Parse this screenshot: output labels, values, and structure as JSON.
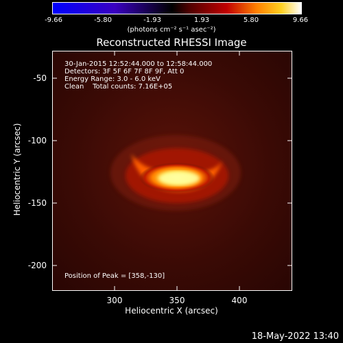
{
  "colorbar": {
    "ticks": [
      "-9.66",
      "-5.80",
      "-1.93",
      "1.93",
      "5.80",
      "9.66"
    ],
    "units": "(photons cm⁻² s⁻¹ asec⁻²)"
  },
  "title": "Reconstructed RHESSI Image",
  "info": {
    "time_range": "30-Jan-2015 12:52:44.000 to 12:58:44.000",
    "detectors": "Detectors: 3F 5F 6F 7F 8F 9F, Att 0",
    "energy": "Energy Range: 3.0 - 6.0 keV",
    "clean": "Clean    Total counts: 7.16E+05",
    "peak": "Position of Peak = [358,-130]"
  },
  "axes": {
    "xlabel": "Heliocentric X (arcsec)",
    "ylabel": "Heliocentric Y (arcsec)",
    "xticks": [
      "300",
      "350",
      "400"
    ],
    "yticks": [
      "-50",
      "-100",
      "-150",
      "-200"
    ]
  },
  "datestamp": "18-May-2022 13:40",
  "colors": {
    "background": "#000000",
    "axes": "#ffffff",
    "image_background": "#3a0a05",
    "source_core": "#ffffa0"
  }
}
